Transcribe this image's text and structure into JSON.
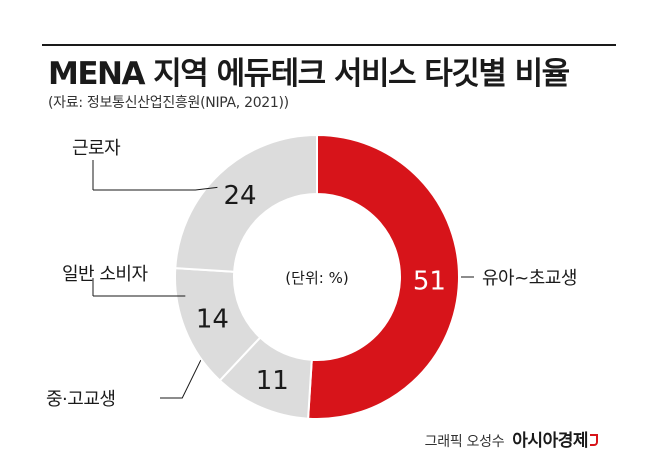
{
  "header": {
    "title": "MENA 지역 에듀테크 서비스 타깃별 비율",
    "source": "(자료: 정보통신산업진흥원(NIPA, 2021))"
  },
  "chart_data": {
    "type": "pie",
    "style": "donut",
    "center_label": "(단위: %)",
    "categories": [
      "유아~초교생",
      "중·고교생",
      "일반 소비자",
      "근로자"
    ],
    "values": [
      51,
      11,
      14,
      24
    ],
    "colors": [
      "#d7141a",
      "#dcdcdc",
      "#dcdcdc",
      "#dcdcdc"
    ],
    "value_label_colors": [
      "#ffffff",
      "#1a1a1a",
      "#1a1a1a",
      "#1a1a1a"
    ]
  },
  "footer": {
    "credit": "그래픽 오성수",
    "brand": "아시아경제"
  }
}
